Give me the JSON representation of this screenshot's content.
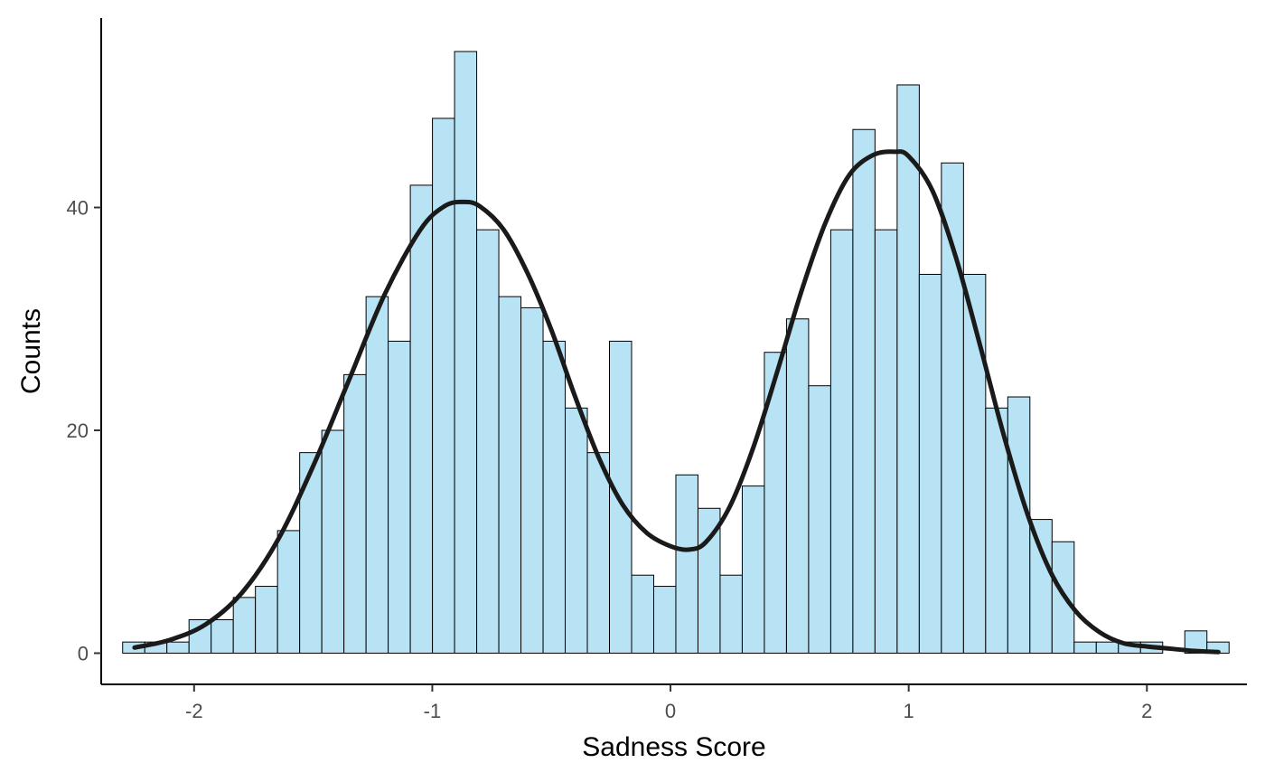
{
  "chart_data": {
    "type": "bar",
    "xlabel": "Sadness Score",
    "ylabel": "Counts",
    "xlim": [
      -2.39,
      2.42
    ],
    "ylim": [
      -2.8,
      57
    ],
    "x_ticks": [
      -2,
      -1,
      0,
      1,
      2
    ],
    "y_ticks": [
      0,
      20,
      40
    ],
    "grid": false,
    "colors": {
      "bar_fill": "#B8E3F5",
      "bar_stroke": "#000000",
      "line": "#1a1a1a"
    },
    "histogram": {
      "bin_start": -2.3,
      "bin_width": 0.0929,
      "counts": [
        1,
        1,
        1,
        3,
        3,
        5,
        6,
        11,
        18,
        20,
        25,
        32,
        28,
        42,
        48,
        54,
        38,
        32,
        31,
        28,
        22,
        18,
        28,
        7,
        6,
        16,
        13,
        7,
        15,
        27,
        30,
        24,
        38,
        47,
        38,
        51,
        34,
        44,
        34,
        22,
        23,
        12,
        10,
        1,
        1,
        1,
        1,
        0,
        2,
        1
      ]
    },
    "series": [
      {
        "name": "",
        "type": "line",
        "x": [
          -2.25,
          -2.1,
          -1.95,
          -1.8,
          -1.65,
          -1.5,
          -1.35,
          -1.2,
          -1.05,
          -0.95,
          -0.87,
          -0.8,
          -0.7,
          -0.6,
          -0.5,
          -0.4,
          -0.3,
          -0.2,
          -0.1,
          0.0,
          0.08,
          0.15,
          0.25,
          0.35,
          0.45,
          0.55,
          0.65,
          0.75,
          0.85,
          0.94,
          1.0,
          1.1,
          1.2,
          1.3,
          1.4,
          1.5,
          1.6,
          1.7,
          1.8,
          1.9,
          2.0,
          2.1,
          2.2,
          2.3
        ],
        "y": [
          0.5,
          1.2,
          2.6,
          5.4,
          10.1,
          16.8,
          24.5,
          32.2,
          38.0,
          40.1,
          40.5,
          40.1,
          38.0,
          34.1,
          29.0,
          23.0,
          17.5,
          13.3,
          10.8,
          9.6,
          9.3,
          10.0,
          13.2,
          18.6,
          25.4,
          32.5,
          38.6,
          42.9,
          44.7,
          45.0,
          44.6,
          41.5,
          35.4,
          27.6,
          19.5,
          12.4,
          7.1,
          3.8,
          1.9,
          0.9,
          0.6,
          0.4,
          0.2,
          0.1
        ]
      }
    ]
  }
}
